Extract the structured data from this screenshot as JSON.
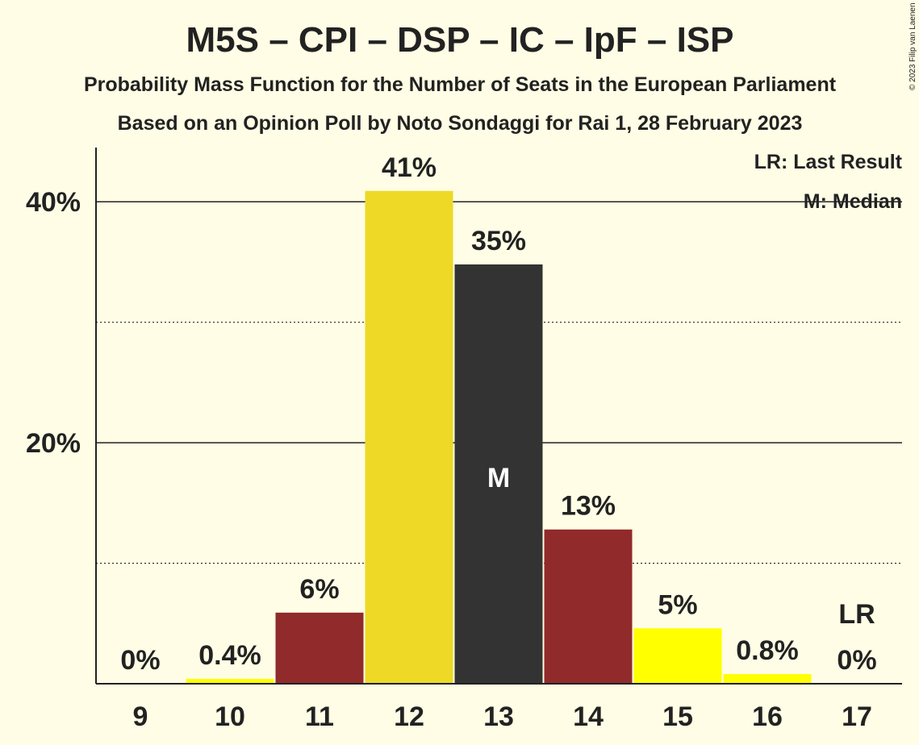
{
  "copyright": "© 2023 Filip van Laenen",
  "chart_data": {
    "type": "bar",
    "title": "M5S – CPI – DSP – IC – IpF – ISP",
    "subtitle": "Probability Mass Function for the Number of Seats in the European Parliament",
    "source": "Based on an Opinion Poll by Noto Sondaggi for Rai 1, 28 February 2023",
    "categories": [
      "9",
      "10",
      "11",
      "12",
      "13",
      "14",
      "15",
      "16",
      "17"
    ],
    "values": [
      0,
      0.4,
      5.9,
      40.9,
      34.8,
      12.8,
      4.6,
      0.8,
      0
    ],
    "value_labels": [
      "0%",
      "0.4%",
      "6%",
      "41%",
      "35%",
      "13%",
      "5%",
      "0.8%",
      "0%"
    ],
    "bar_colors": [
      "#FFFF00",
      "#FFFF00",
      "#912A2A",
      "#EDD926",
      "#333333",
      "#912A2A",
      "#FFFF00",
      "#FFFF00",
      "#FFFF00"
    ],
    "median_index": 4,
    "median_marker": "M",
    "last_result_index": 8,
    "last_result_marker": "LR",
    "ylim": [
      0,
      44.5
    ],
    "yticks": [
      20,
      40
    ],
    "ytick_labels": [
      "20%",
      "40%"
    ],
    "minor_gridlines": [
      10,
      30
    ],
    "legend": {
      "position": "top-right",
      "entries": [
        "LR: Last Result",
        "M: Median"
      ]
    }
  }
}
